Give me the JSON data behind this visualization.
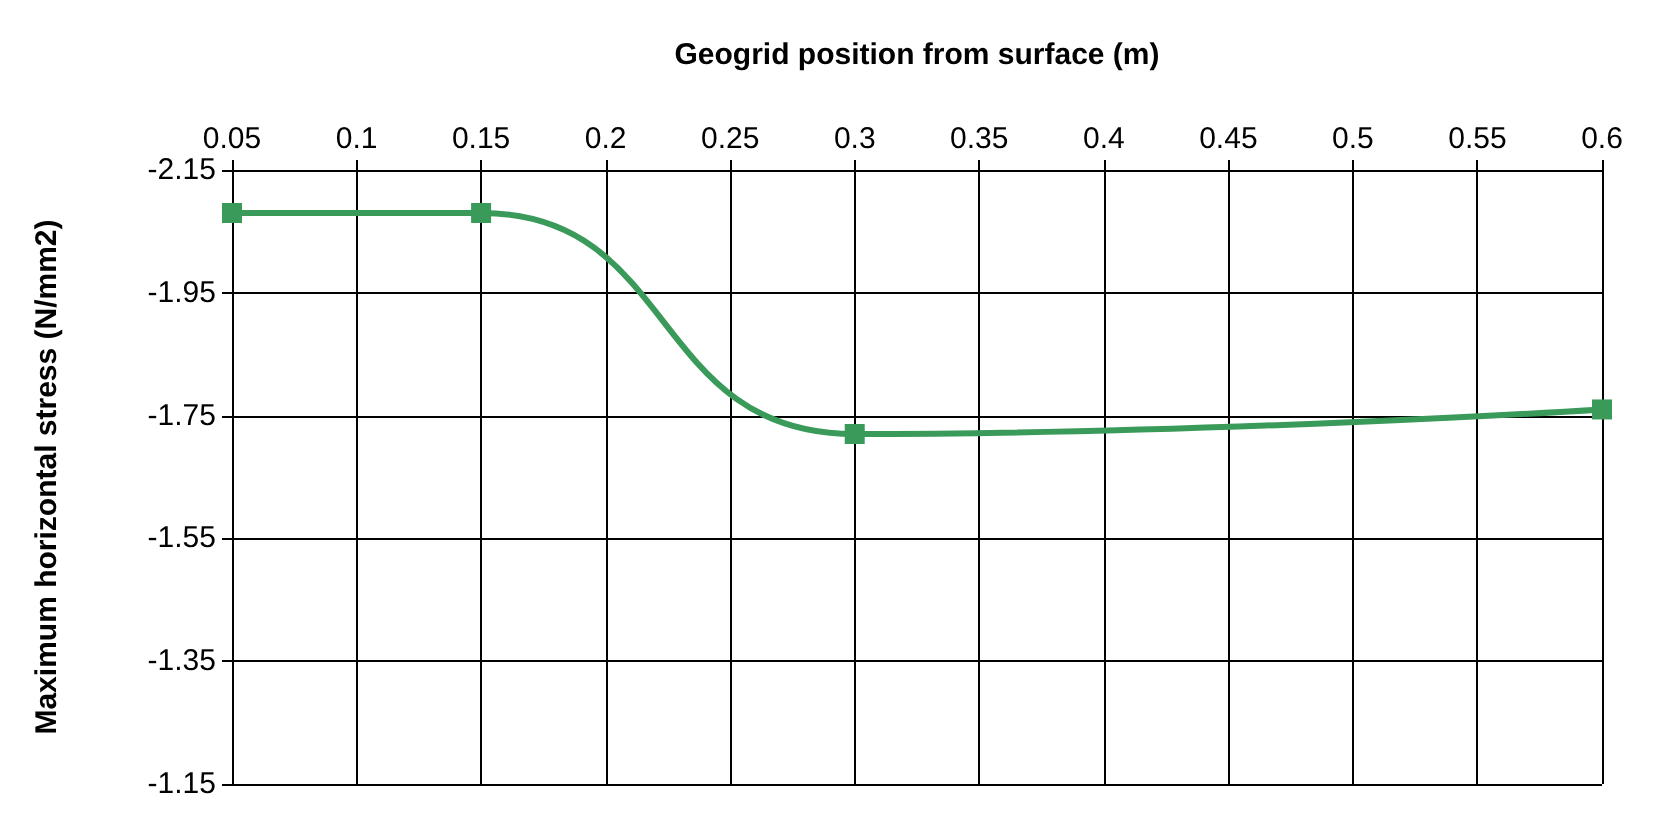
{
  "chart_data": {
    "type": "line",
    "xlabel": "Geogrid position from surface (m)",
    "ylabel": "Maximum horizontal stress (N/mm2)",
    "x": [
      0.05,
      0.15,
      0.3,
      0.6
    ],
    "series": [
      {
        "color": "#3a9a5a",
        "values": [
          -2.08,
          -2.08,
          -1.72,
          -1.76
        ]
      }
    ],
    "xlim": [
      0.05,
      0.6
    ],
    "xticks": [
      0.05,
      0.1,
      0.15,
      0.2,
      0.25,
      0.3,
      0.35,
      0.4,
      0.45,
      0.5,
      0.55,
      0.6
    ],
    "ylim": [
      -1.15,
      -2.15
    ],
    "yticks": [
      -2.15,
      -1.95,
      -1.75,
      -1.55,
      -1.35,
      -1.15
    ],
    "grid": true,
    "marker": "square",
    "line_style": "solid"
  }
}
